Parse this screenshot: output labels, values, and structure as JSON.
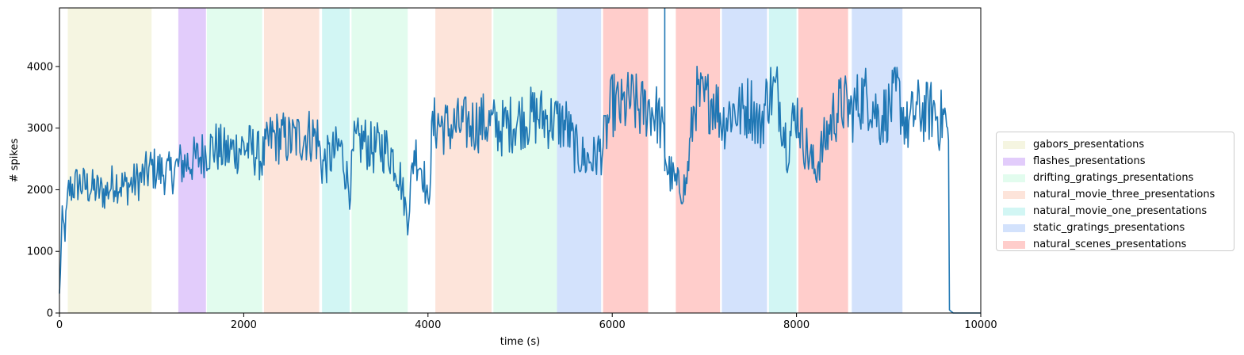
{
  "chart_data": {
    "type": "line",
    "title": "",
    "xlabel": "time (s)",
    "ylabel": "# spikes",
    "xlim": [
      0,
      10000
    ],
    "ylim": [
      0,
      4950
    ],
    "xticks": [
      0,
      2000,
      4000,
      6000,
      8000,
      10000
    ],
    "yticks": [
      0,
      1000,
      2000,
      3000,
      4000
    ],
    "grid": false,
    "legend_position": "right-center outside",
    "legend": [
      {
        "name": "gabors_presentations",
        "color": "#f5f5e1"
      },
      {
        "name": "flashes_presentations",
        "color": "#e2ccfb"
      },
      {
        "name": "drifting_gratings_presentations",
        "color": "#e2fcee"
      },
      {
        "name": "natural_movie_three_presentations",
        "color": "#fde4da"
      },
      {
        "name": "natural_movie_one_presentations",
        "color": "#d2f6f4"
      },
      {
        "name": "static_gratings_presentations",
        "color": "#d3e2fc"
      },
      {
        "name": "natural_scenes_presentations",
        "color": "#ffcdcb"
      }
    ],
    "stimulus_blocks": [
      {
        "stimulus": "gabors_presentations",
        "start": 90,
        "end": 1000
      },
      {
        "stimulus": "flashes_presentations",
        "start": 1290,
        "end": 1590
      },
      {
        "stimulus": "drifting_gratings_presentations",
        "start": 1600,
        "end": 2200
      },
      {
        "stimulus": "natural_movie_three_presentations",
        "start": 2220,
        "end": 2820
      },
      {
        "stimulus": "natural_movie_one_presentations",
        "start": 2850,
        "end": 3150
      },
      {
        "stimulus": "drifting_gratings_presentations",
        "start": 3170,
        "end": 3780
      },
      {
        "stimulus": "natural_movie_three_presentations",
        "start": 4080,
        "end": 4690
      },
      {
        "stimulus": "drifting_gratings_presentations",
        "start": 4710,
        "end": 5400
      },
      {
        "stimulus": "static_gratings_presentations",
        "start": 5400,
        "end": 5880
      },
      {
        "stimulus": "natural_scenes_presentations",
        "start": 5900,
        "end": 6390
      },
      {
        "stimulus": "natural_scenes_presentations",
        "start": 6690,
        "end": 7170
      },
      {
        "stimulus": "static_gratings_presentations",
        "start": 7190,
        "end": 7680
      },
      {
        "stimulus": "natural_movie_one_presentations",
        "start": 7700,
        "end": 8000
      },
      {
        "stimulus": "natural_scenes_presentations",
        "start": 8020,
        "end": 8560
      },
      {
        "stimulus": "static_gratings_presentations",
        "start": 8600,
        "end": 9150
      }
    ],
    "series": [
      {
        "color": "#1f77b4",
        "x": [
          0,
          30,
          60,
          100,
          200,
          300,
          400,
          500,
          600,
          700,
          800,
          900,
          1000,
          1100,
          1200,
          1300,
          1400,
          1500,
          1600,
          1700,
          1800,
          1900,
          2000,
          2100,
          2200,
          2300,
          2400,
          2500,
          2600,
          2700,
          2800,
          2850,
          2950,
          3050,
          3150,
          3200,
          3300,
          3400,
          3500,
          3600,
          3700,
          3780,
          3850,
          3950,
          4000,
          4050,
          4100,
          4200,
          4400,
          4600,
          4800,
          5000,
          5200,
          5400,
          5500,
          5600,
          5700,
          5800,
          5900,
          6000,
          6100,
          6200,
          6300,
          6400,
          6500,
          6560,
          6600,
          6700,
          6800,
          6900,
          7000,
          7100,
          7200,
          7300,
          7400,
          7500,
          7600,
          7700,
          7800,
          7900,
          8000,
          8100,
          8200,
          8300,
          8400,
          8500,
          8600,
          8700,
          8800,
          8900,
          9000,
          9100,
          9200,
          9300,
          9400,
          9500,
          9550,
          9600,
          9640,
          9650,
          9660,
          9700,
          10000
        ],
        "y": [
          300,
          1500,
          1300,
          2000,
          2100,
          2050,
          2000,
          1950,
          2150,
          2050,
          2100,
          2200,
          2350,
          2300,
          2250,
          2400,
          2450,
          2500,
          2650,
          2700,
          2600,
          2650,
          2700,
          2650,
          2500,
          2850,
          2850,
          2800,
          2850,
          2900,
          2850,
          2400,
          2550,
          2700,
          2000,
          2700,
          2800,
          2650,
          2700,
          2600,
          2200,
          1500,
          2650,
          2300,
          1700,
          3000,
          3100,
          3000,
          3050,
          3100,
          3000,
          3150,
          3200,
          3100,
          3050,
          2650,
          2500,
          2500,
          2700,
          3400,
          3300,
          3450,
          3300,
          3350,
          3200,
          2800,
          2350,
          2050,
          2050,
          3500,
          3400,
          3500,
          3100,
          3300,
          3250,
          3400,
          3000,
          3600,
          3550,
          2700,
          3300,
          2700,
          2300,
          2750,
          3200,
          3400,
          3250,
          3500,
          3500,
          3150,
          3300,
          3550,
          3000,
          3300,
          3250,
          3300,
          3100,
          3200,
          3000,
          2800,
          50,
          0,
          0
        ],
        "spikes": [
          {
            "x": 6570,
            "y": 4950
          }
        ]
      }
    ]
  }
}
